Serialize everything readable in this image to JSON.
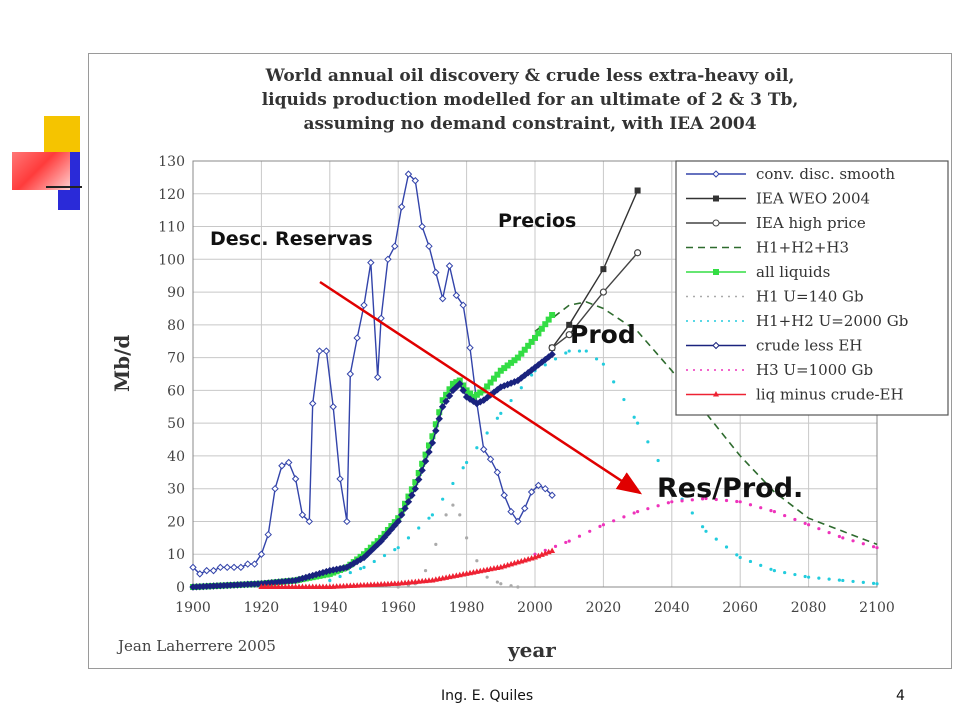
{
  "slide": {
    "footer": "Ing. E. Quiles",
    "page_number": "4"
  },
  "annotations": {
    "precios": "Precios",
    "desc_reservas": "Desc. Reservas",
    "prod": "Prod",
    "res_prod": "Res/Prod."
  },
  "colors": {
    "deco_yellow": "#f5c400",
    "deco_blue": "#2a2ad8",
    "deco_red": "#ff4040",
    "arrow": "#e00000"
  },
  "chart_data": {
    "type": "line",
    "title_lines": [
      "World annual oil discovery & crude less extra-heavy oil,",
      "liquids production modelled for an ultimate of 2 & 3 Tb,",
      "assuming no demand constraint, with IEA 2004"
    ],
    "xlabel": "year",
    "ylabel": "Mb/d",
    "xlim": [
      1900,
      2100
    ],
    "ylim": [
      0,
      130
    ],
    "x_ticks": [
      1900,
      1920,
      1940,
      1960,
      1980,
      2000,
      2020,
      2040,
      2060,
      2080,
      2100
    ],
    "y_ticks": [
      0,
      10,
      20,
      30,
      40,
      50,
      60,
      70,
      80,
      90,
      100,
      110,
      120,
      130
    ],
    "grid": true,
    "legend_position": "top-right",
    "credit": "Jean Laherrere 2005",
    "series": [
      {
        "name": "conv. disc. smooth",
        "color": "#3344aa",
        "style": "line-diamond",
        "points": [
          [
            1900,
            6
          ],
          [
            1902,
            4
          ],
          [
            1904,
            5
          ],
          [
            1906,
            5
          ],
          [
            1908,
            6
          ],
          [
            1910,
            6
          ],
          [
            1912,
            6
          ],
          [
            1914,
            6
          ],
          [
            1916,
            7
          ],
          [
            1918,
            7
          ],
          [
            1920,
            10
          ],
          [
            1922,
            16
          ],
          [
            1924,
            30
          ],
          [
            1926,
            37
          ],
          [
            1928,
            38
          ],
          [
            1930,
            33
          ],
          [
            1932,
            22
          ],
          [
            1934,
            20
          ],
          [
            1935,
            56
          ],
          [
            1937,
            72
          ],
          [
            1939,
            72
          ],
          [
            1941,
            55
          ],
          [
            1943,
            33
          ],
          [
            1945,
            20
          ],
          [
            1946,
            65
          ],
          [
            1948,
            76
          ],
          [
            1950,
            86
          ],
          [
            1952,
            99
          ],
          [
            1954,
            64
          ],
          [
            1955,
            82
          ],
          [
            1957,
            100
          ],
          [
            1959,
            104
          ],
          [
            1961,
            116
          ],
          [
            1963,
            126
          ],
          [
            1965,
            124
          ],
          [
            1967,
            110
          ],
          [
            1969,
            104
          ],
          [
            1971,
            96
          ],
          [
            1973,
            88
          ],
          [
            1975,
            98
          ],
          [
            1977,
            89
          ],
          [
            1979,
            86
          ],
          [
            1981,
            73
          ],
          [
            1983,
            56
          ],
          [
            1985,
            42
          ],
          [
            1987,
            39
          ],
          [
            1989,
            35
          ],
          [
            1991,
            28
          ],
          [
            1993,
            23
          ],
          [
            1995,
            20
          ],
          [
            1997,
            24
          ],
          [
            1999,
            29
          ],
          [
            2001,
            31
          ],
          [
            2003,
            30
          ],
          [
            2005,
            28
          ]
        ]
      },
      {
        "name": "IEA WEO 2004",
        "color": "#333333",
        "style": "line-square",
        "points": [
          [
            2005,
            73
          ],
          [
            2010,
            80
          ],
          [
            2020,
            97
          ],
          [
            2030,
            121
          ]
        ]
      },
      {
        "name": "IEA high price",
        "color": "#444444",
        "style": "line-circle",
        "points": [
          [
            2005,
            73
          ],
          [
            2010,
            77
          ],
          [
            2020,
            90
          ],
          [
            2030,
            102
          ]
        ]
      },
      {
        "name": "H1+H2+H3",
        "color": "#2e6b2e",
        "style": "dashed",
        "points": [
          [
            2000,
            78
          ],
          [
            2005,
            82
          ],
          [
            2010,
            86
          ],
          [
            2015,
            87
          ],
          [
            2020,
            85
          ],
          [
            2030,
            78
          ],
          [
            2040,
            66
          ],
          [
            2050,
            53
          ],
          [
            2060,
            40
          ],
          [
            2070,
            29
          ],
          [
            2080,
            21
          ],
          [
            2090,
            17
          ],
          [
            2100,
            13
          ]
        ]
      },
      {
        "name": "all liquids",
        "color": "#33dd44",
        "style": "line-square",
        "points": [
          [
            1900,
            0
          ],
          [
            1920,
            1
          ],
          [
            1930,
            2
          ],
          [
            1940,
            4
          ],
          [
            1945,
            6
          ],
          [
            1950,
            10
          ],
          [
            1955,
            15
          ],
          [
            1960,
            21
          ],
          [
            1965,
            32
          ],
          [
            1970,
            46
          ],
          [
            1973,
            57
          ],
          [
            1976,
            62
          ],
          [
            1978,
            63
          ],
          [
            1980,
            60
          ],
          [
            1982,
            58
          ],
          [
            1985,
            60
          ],
          [
            1990,
            66
          ],
          [
            1995,
            70
          ],
          [
            2000,
            76
          ],
          [
            2005,
            83
          ]
        ]
      },
      {
        "name": "H1 U=140 Gb",
        "color": "#aaaaaa",
        "style": "dotted",
        "points": [
          [
            1960,
            0
          ],
          [
            1965,
            1
          ],
          [
            1968,
            5
          ],
          [
            1971,
            13
          ],
          [
            1974,
            22
          ],
          [
            1976,
            25
          ],
          [
            1978,
            22
          ],
          [
            1980,
            15
          ],
          [
            1983,
            8
          ],
          [
            1986,
            3
          ],
          [
            1990,
            1
          ],
          [
            1995,
            0
          ]
        ]
      },
      {
        "name": "H1+H2 U=2000 Gb",
        "color": "#22ccdd",
        "style": "dotted",
        "points": [
          [
            1940,
            2
          ],
          [
            1950,
            6
          ],
          [
            1960,
            12
          ],
          [
            1970,
            22
          ],
          [
            1980,
            38
          ],
          [
            1990,
            53
          ],
          [
            2000,
            66
          ],
          [
            2010,
            72
          ],
          [
            2015,
            72
          ],
          [
            2020,
            68
          ],
          [
            2030,
            50
          ],
          [
            2040,
            31
          ],
          [
            2050,
            17
          ],
          [
            2060,
            9
          ],
          [
            2070,
            5
          ],
          [
            2080,
            3
          ],
          [
            2090,
            2
          ],
          [
            2100,
            1
          ]
        ]
      },
      {
        "name": "crude less EH",
        "color": "#1a237e",
        "style": "line-diamond",
        "points": [
          [
            1900,
            0
          ],
          [
            1920,
            1
          ],
          [
            1930,
            2
          ],
          [
            1940,
            5
          ],
          [
            1945,
            6
          ],
          [
            1950,
            9
          ],
          [
            1955,
            14
          ],
          [
            1960,
            20
          ],
          [
            1965,
            30
          ],
          [
            1970,
            44
          ],
          [
            1973,
            55
          ],
          [
            1976,
            60
          ],
          [
            1978,
            62
          ],
          [
            1980,
            58
          ],
          [
            1983,
            56
          ],
          [
            1985,
            57
          ],
          [
            1990,
            61
          ],
          [
            1995,
            63
          ],
          [
            2000,
            67
          ],
          [
            2005,
            71
          ]
        ]
      },
      {
        "name": "H3 U=1000 Gb",
        "color": "#ee33bb",
        "style": "dotted",
        "points": [
          [
            2000,
            10
          ],
          [
            2010,
            14
          ],
          [
            2020,
            19
          ],
          [
            2030,
            23
          ],
          [
            2040,
            26
          ],
          [
            2050,
            27
          ],
          [
            2060,
            26
          ],
          [
            2070,
            23
          ],
          [
            2080,
            19
          ],
          [
            2090,
            15
          ],
          [
            2100,
            12
          ]
        ]
      },
      {
        "name": "liq minus crude-EH",
        "color": "#ee2233",
        "style": "line-triangle",
        "points": [
          [
            1920,
            0
          ],
          [
            1940,
            0
          ],
          [
            1960,
            1
          ],
          [
            1970,
            2
          ],
          [
            1980,
            4
          ],
          [
            1990,
            6
          ],
          [
            2000,
            9
          ],
          [
            2005,
            11
          ]
        ]
      }
    ]
  }
}
